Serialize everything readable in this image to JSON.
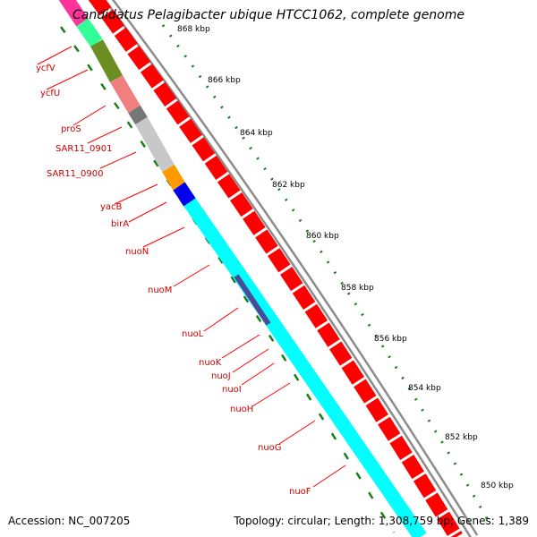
{
  "title": "Candidatus Pelagibacter ubique HTCC1062, complete genome",
  "footer": {
    "accession": "Accession: NC_007205",
    "summary": "Topology: circular; Length: 1,308,759 bp; Genes: 1,389"
  },
  "colors": {
    "forward_gene": "#ff0000",
    "axis_ticks": "#1a7f1a",
    "backbone": "#8c8c8c",
    "label_red": "#cc0000",
    "cyan": "#00ffff"
  },
  "axis_labels": [
    "868 kbp",
    "866 kbp",
    "864 kbp",
    "862 kbp",
    "860 kbp",
    "858 kbp",
    "856 kbp",
    "854 kbp",
    "852 kbp",
    "850 kbp"
  ],
  "gene_labels": [
    "ycfV",
    "ycfU",
    "proS",
    "SAR11_0901",
    "SAR11_0900",
    "yacB",
    "birA",
    "nuoN",
    "nuoM",
    "nuoL",
    "nuoK",
    "nuoJ",
    "nuoI",
    "nuoH",
    "nuoG",
    "nuoF"
  ]
}
